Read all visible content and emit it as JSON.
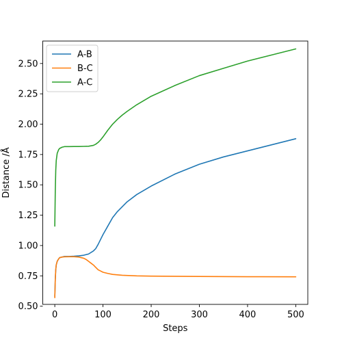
{
  "chart_data": {
    "type": "line",
    "xlabel": "Steps",
    "ylabel": "Distance /Å",
    "xlim": [
      -25,
      525
    ],
    "ylim": [
      0.515,
      2.685
    ],
    "xticks": [
      0,
      100,
      200,
      300,
      400,
      500
    ],
    "yticks": [
      0.5,
      0.75,
      1.0,
      1.25,
      1.5,
      1.75,
      2.0,
      2.25,
      2.5
    ],
    "ytick_labels": [
      "0.50",
      "0.75",
      "1.00",
      "1.25",
      "1.50",
      "1.75",
      "2.00",
      "2.25",
      "2.50"
    ],
    "grid": false,
    "legend_position": "top-left",
    "series": [
      {
        "name": "A-B",
        "color": "#1f77b4",
        "x": [
          0,
          1,
          2,
          3,
          5,
          8,
          10,
          15,
          20,
          30,
          40,
          50,
          60,
          70,
          80,
          85,
          90,
          95,
          100,
          110,
          120,
          130,
          140,
          150,
          170,
          200,
          250,
          300,
          350,
          400,
          450,
          500
        ],
        "y": [
          0.58,
          0.72,
          0.8,
          0.84,
          0.87,
          0.89,
          0.9,
          0.905,
          0.91,
          0.91,
          0.912,
          0.915,
          0.92,
          0.93,
          0.955,
          0.975,
          1.01,
          1.05,
          1.09,
          1.16,
          1.23,
          1.28,
          1.32,
          1.36,
          1.42,
          1.49,
          1.59,
          1.67,
          1.73,
          1.78,
          1.83,
          1.88
        ]
      },
      {
        "name": "B-C",
        "color": "#ff7f0e",
        "x": [
          0,
          1,
          2,
          3,
          5,
          8,
          10,
          15,
          20,
          30,
          40,
          50,
          55,
          60,
          65,
          70,
          75,
          80,
          85,
          90,
          95,
          100,
          110,
          120,
          140,
          170,
          200,
          300,
          400,
          500
        ],
        "y": [
          0.57,
          0.72,
          0.8,
          0.84,
          0.87,
          0.89,
          0.9,
          0.905,
          0.907,
          0.908,
          0.908,
          0.905,
          0.9,
          0.895,
          0.885,
          0.87,
          0.855,
          0.84,
          0.82,
          0.8,
          0.79,
          0.78,
          0.77,
          0.762,
          0.755,
          0.75,
          0.748,
          0.745,
          0.743,
          0.742
        ]
      },
      {
        "name": "A-C",
        "color": "#2ca02c",
        "x": [
          0,
          1,
          2,
          3,
          5,
          8,
          10,
          15,
          20,
          30,
          40,
          50,
          60,
          70,
          80,
          85,
          90,
          95,
          100,
          110,
          120,
          130,
          140,
          150,
          170,
          200,
          250,
          300,
          350,
          400,
          450,
          500
        ],
        "y": [
          1.16,
          1.45,
          1.62,
          1.7,
          1.76,
          1.79,
          1.8,
          1.81,
          1.815,
          1.815,
          1.816,
          1.816,
          1.817,
          1.818,
          1.825,
          1.835,
          1.85,
          1.87,
          1.895,
          1.95,
          2.0,
          2.04,
          2.075,
          2.105,
          2.16,
          2.23,
          2.32,
          2.4,
          2.46,
          2.52,
          2.57,
          2.62
        ]
      }
    ]
  }
}
